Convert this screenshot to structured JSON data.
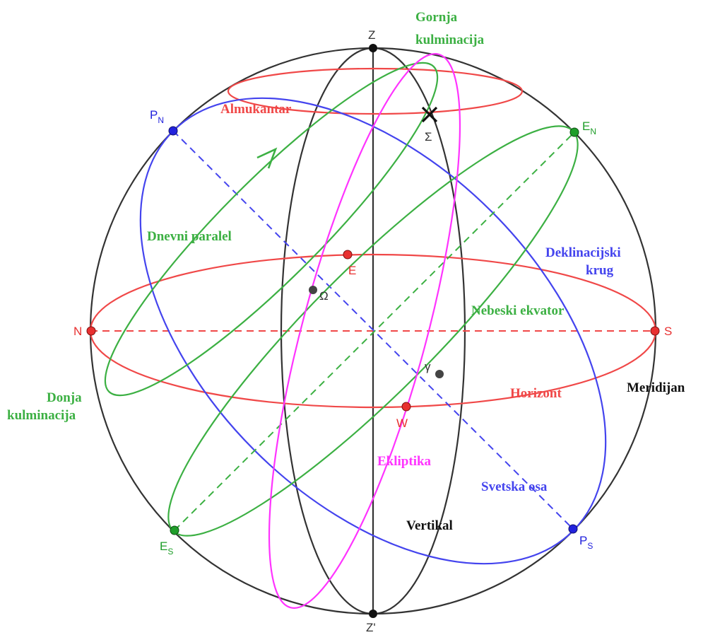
{
  "colors": {
    "horizon": "#f04848",
    "equator": "#3cb043",
    "meridian": "#4444ee",
    "ecliptic": "#ff33ff",
    "frame": "#333333"
  },
  "points": {
    "zenith": "Z",
    "nadir": "Z'",
    "north": "N",
    "south": "S",
    "east": "E",
    "west": "W",
    "north_pole": {
      "main": "P",
      "sub": "N"
    },
    "south_pole": {
      "main": "P",
      "sub": "S"
    },
    "equator_north": {
      "main": "E",
      "sub": "N"
    },
    "equator_south": {
      "main": "E",
      "sub": "S"
    },
    "star": "Σ",
    "vernal_point": "γ",
    "ascending_node": "Ω"
  },
  "labels": {
    "upper_culmination": [
      "Gornja",
      "kulminacija"
    ],
    "lower_culmination": [
      "Donja",
      "kulminacija"
    ],
    "almucantar": "Almukantar",
    "daily_parallel": "Dnevni paralel",
    "declination_circle": [
      "Deklinacijski",
      "krug"
    ],
    "celestial_equator": "Nebeski ekvator",
    "horizon": "Horizont",
    "meridian": "Meridijan",
    "ecliptic": "Ekliptika",
    "world_axis": "Svetska osa",
    "vertical": "Vertikal"
  }
}
